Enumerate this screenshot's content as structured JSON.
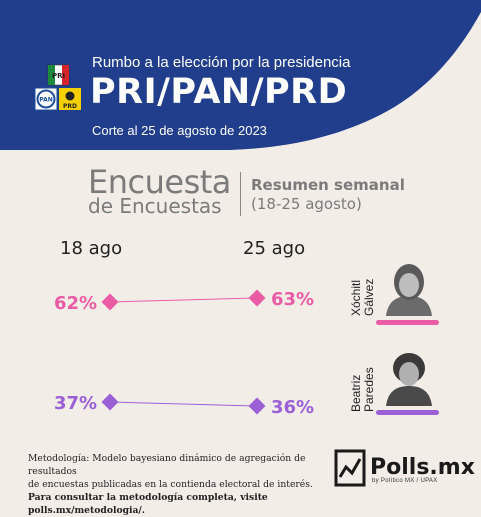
{
  "header": {
    "subtitle": "Rumbo a la elección por la presidencia",
    "title": "PRI/PAN/PRD",
    "date": "Corte al 25 de agosto de 2023",
    "band_color": "#203e8c",
    "party_logos": {
      "pri": "PRI",
      "pan": "PAN",
      "prd": "PRD"
    }
  },
  "section": {
    "title_line1": "Encuesta",
    "title_line2": "de Encuestas",
    "summary_label": "Resumen semanal",
    "summary_range": "(18-25 agosto)"
  },
  "chart_data": {
    "type": "line",
    "x": [
      "18 ago",
      "25 ago"
    ],
    "ylim": [
      0,
      100
    ],
    "series": [
      {
        "name": "Xóchitl Gálvez",
        "values": [
          62,
          63
        ],
        "labels": [
          "62%",
          "63%"
        ],
        "color": "#e95ba5"
      },
      {
        "name": "Beatriz Paredes",
        "values": [
          37,
          36
        ],
        "labels": [
          "37%",
          "36%"
        ],
        "color": "#9b5fd6"
      }
    ]
  },
  "candidates": [
    {
      "first": "Xóchitl",
      "last": "Gálvez",
      "photo_icon": "portrait-photo",
      "color": "#e95ba5"
    },
    {
      "first": "Beatriz",
      "last": "Paredes",
      "photo_icon": "portrait-photo",
      "color": "#9b5fd6"
    }
  ],
  "footer": {
    "methodology_line1": "Metodología: Modelo bayesiano dinámico de agregación de resultados",
    "methodology_line2": "de encuestas publicadas en la contienda electoral de interés.",
    "methodology_line3": "Para consultar la metodología completa, visite polls.mx/metodologia/.",
    "brand": "Polls.mx",
    "brand_sub": "by Político MX / UPAX"
  }
}
